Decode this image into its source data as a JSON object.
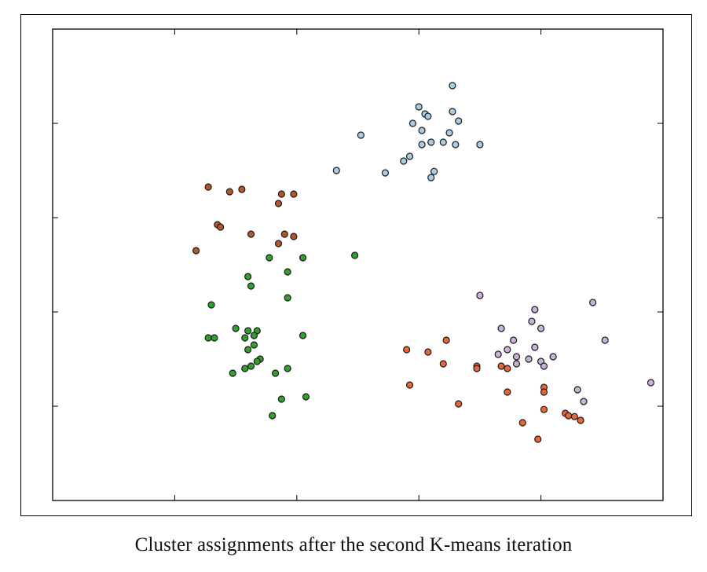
{
  "caption": "Cluster assignments after the second K-means iteration",
  "chart_data": {
    "type": "scatter",
    "title": "",
    "xlabel": "",
    "ylabel": "",
    "xlim": [
      0,
      10
    ],
    "ylim": [
      0,
      10
    ],
    "xticks": [
      2,
      4,
      6,
      8
    ],
    "yticks": [
      2,
      4,
      6,
      8
    ],
    "tick_labels_shown": false,
    "grid": false,
    "legend": "none",
    "series": [
      {
        "color": "#a6cee3",
        "points": [
          [
            6.55,
            8.8
          ],
          [
            6.0,
            8.35
          ],
          [
            6.1,
            8.2
          ],
          [
            6.15,
            8.15
          ],
          [
            5.9,
            8.0
          ],
          [
            6.55,
            8.25
          ],
          [
            6.65,
            8.05
          ],
          [
            5.05,
            7.75
          ],
          [
            6.05,
            7.85
          ],
          [
            6.5,
            7.8
          ],
          [
            6.4,
            7.6
          ],
          [
            6.05,
            7.55
          ],
          [
            6.2,
            7.6
          ],
          [
            6.6,
            7.55
          ],
          [
            7.0,
            7.55
          ],
          [
            5.85,
            7.3
          ],
          [
            5.75,
            7.2
          ],
          [
            4.65,
            7.0
          ],
          [
            5.45,
            6.95
          ],
          [
            6.25,
            6.98
          ],
          [
            6.2,
            6.85
          ]
        ]
      },
      {
        "color": "#b15928",
        "points": [
          [
            2.55,
            6.65
          ],
          [
            2.9,
            6.55
          ],
          [
            3.1,
            6.6
          ],
          [
            3.75,
            6.5
          ],
          [
            3.95,
            6.5
          ],
          [
            3.7,
            6.3
          ],
          [
            2.7,
            5.85
          ],
          [
            2.75,
            5.8
          ],
          [
            3.25,
            5.65
          ],
          [
            3.8,
            5.65
          ],
          [
            3.95,
            5.6
          ],
          [
            3.7,
            5.45
          ],
          [
            2.35,
            5.3
          ]
        ]
      },
      {
        "color": "#33a02c",
        "points": [
          [
            4.95,
            5.2
          ],
          [
            3.55,
            5.15
          ],
          [
            4.1,
            5.15
          ],
          [
            3.85,
            4.85
          ],
          [
            3.2,
            4.75
          ],
          [
            3.25,
            4.55
          ],
          [
            3.85,
            4.3
          ],
          [
            2.6,
            4.15
          ],
          [
            3.0,
            3.65
          ],
          [
            3.2,
            3.6
          ],
          [
            3.35,
            3.6
          ],
          [
            3.3,
            3.5
          ],
          [
            2.55,
            3.45
          ],
          [
            2.65,
            3.45
          ],
          [
            3.15,
            3.45
          ],
          [
            4.1,
            3.5
          ],
          [
            3.3,
            3.3
          ],
          [
            3.2,
            3.2
          ],
          [
            3.4,
            3.0
          ],
          [
            3.35,
            2.95
          ],
          [
            3.25,
            2.85
          ],
          [
            3.15,
            2.8
          ],
          [
            3.85,
            2.8
          ],
          [
            2.95,
            2.7
          ],
          [
            3.65,
            2.7
          ],
          [
            4.15,
            2.2
          ],
          [
            3.75,
            2.15
          ],
          [
            3.6,
            1.8
          ]
        ]
      },
      {
        "color": "#cab2d6",
        "points": [
          [
            7.0,
            4.35
          ],
          [
            8.85,
            4.2
          ],
          [
            7.9,
            4.05
          ],
          [
            7.85,
            3.8
          ],
          [
            8.0,
            3.65
          ],
          [
            7.35,
            3.65
          ],
          [
            7.55,
            3.4
          ],
          [
            9.05,
            3.4
          ],
          [
            7.45,
            3.2
          ],
          [
            7.9,
            3.25
          ],
          [
            7.3,
            3.1
          ],
          [
            7.6,
            3.05
          ],
          [
            7.8,
            3.0
          ],
          [
            8.2,
            3.05
          ],
          [
            8.0,
            2.95
          ],
          [
            7.6,
            2.9
          ],
          [
            8.05,
            2.85
          ],
          [
            9.8,
            2.5
          ],
          [
            8.6,
            2.35
          ],
          [
            8.7,
            2.1
          ]
        ]
      },
      {
        "color": "#e8663a",
        "points": [
          [
            6.45,
            3.4
          ],
          [
            5.8,
            3.2
          ],
          [
            6.15,
            3.15
          ],
          [
            6.4,
            2.9
          ],
          [
            6.95,
            2.85
          ],
          [
            6.95,
            2.8
          ],
          [
            7.35,
            2.85
          ],
          [
            7.45,
            2.8
          ],
          [
            5.85,
            2.45
          ],
          [
            8.05,
            2.4
          ],
          [
            7.45,
            2.3
          ],
          [
            8.05,
            2.3
          ],
          [
            6.65,
            2.05
          ],
          [
            8.05,
            1.93
          ],
          [
            8.4,
            1.85
          ],
          [
            8.45,
            1.8
          ],
          [
            8.55,
            1.78
          ],
          [
            8.65,
            1.7
          ],
          [
            7.7,
            1.65
          ],
          [
            7.95,
            1.3
          ]
        ]
      }
    ]
  }
}
